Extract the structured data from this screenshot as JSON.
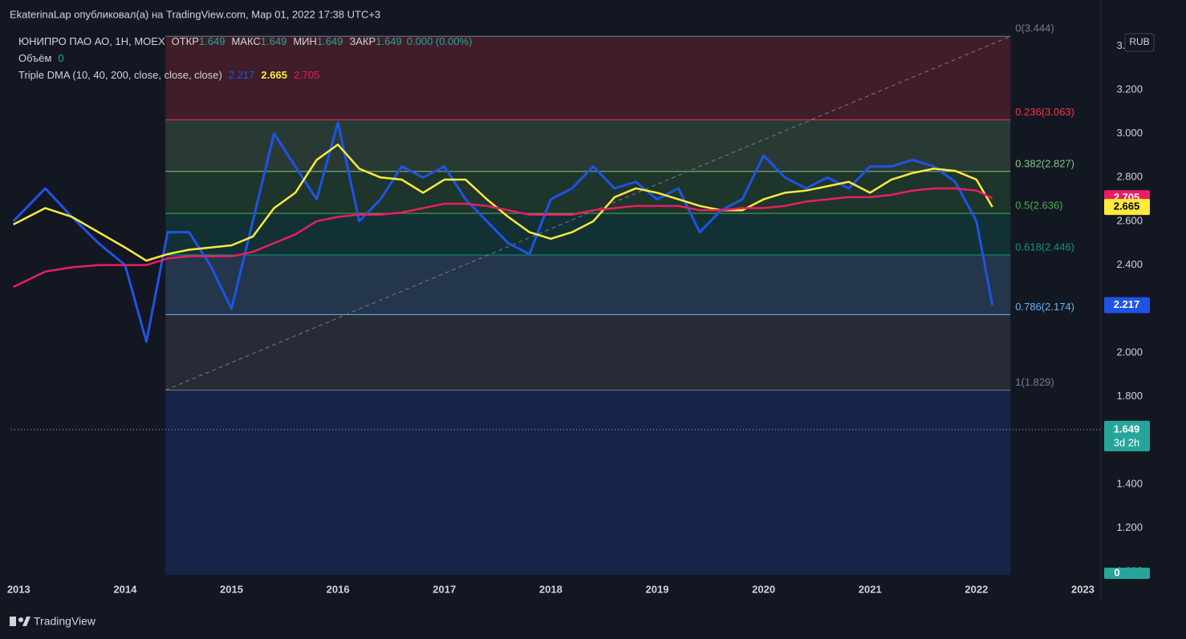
{
  "header": "EkaterinaLap опубликовал(а) на TradingView.com, Мар 01, 2022 17:38 UTC+3",
  "footer": "TradingView",
  "chart_data": {
    "type": "line",
    "symbol": "ЮНИПРО ПАО АО, 1H, MOEX",
    "ohlc": [
      {
        "label": "ОТКР",
        "value": 1.649
      },
      {
        "label": "МАКС",
        "value": 1.649
      },
      {
        "label": "МИН",
        "value": 1.649
      },
      {
        "label": "ЗАКР",
        "value": 1.649
      }
    ],
    "change_label": "0.000 (0.00%)",
    "volume_label": "Объём",
    "volume_value": 0,
    "indicator": "Triple DMA (10, 40, 200, close, close, close)",
    "currency": "RUB",
    "countdown": "3d 2h",
    "last_price": {
      "value": 1.649,
      "label": "1.649"
    },
    "x": [
      2012.95,
      2013.25,
      2013.5,
      2013.75,
      2014.0,
      2014.2,
      2014.4,
      2014.6,
      2014.8,
      2015.0,
      2015.2,
      2015.4,
      2015.6,
      2015.8,
      2016.0,
      2016.2,
      2016.4,
      2016.6,
      2016.8,
      2017.0,
      2017.2,
      2017.4,
      2017.6,
      2017.8,
      2018.0,
      2018.2,
      2018.4,
      2018.6,
      2018.8,
      2019.0,
      2019.2,
      2019.4,
      2019.6,
      2019.8,
      2020.0,
      2020.2,
      2020.4,
      2020.6,
      2020.8,
      2021.0,
      2021.2,
      2021.4,
      2021.6,
      2021.8,
      2022.0,
      2022.15
    ],
    "series": [
      {
        "color": "#1e53e5",
        "width": 3,
        "values": [
          2.6,
          2.75,
          2.62,
          2.5,
          2.4,
          2.05,
          2.55,
          2.55,
          2.4,
          2.2,
          2.6,
          3.0,
          2.85,
          2.7,
          3.05,
          2.6,
          2.7,
          2.85,
          2.8,
          2.85,
          2.7,
          2.6,
          2.5,
          2.45,
          2.7,
          2.75,
          2.85,
          2.75,
          2.78,
          2.7,
          2.75,
          2.55,
          2.65,
          2.7,
          2.9,
          2.8,
          2.75,
          2.8,
          2.75,
          2.85,
          2.85,
          2.88,
          2.85,
          2.78,
          2.6,
          2.217
        ]
      },
      {
        "color": "#ffeb3b",
        "width": 2.5,
        "values": [
          2.585,
          2.66,
          2.62,
          2.55,
          2.48,
          2.42,
          2.45,
          2.47,
          2.48,
          2.49,
          2.53,
          2.66,
          2.73,
          2.88,
          2.95,
          2.84,
          2.8,
          2.79,
          2.73,
          2.79,
          2.79,
          2.7,
          2.62,
          2.55,
          2.52,
          2.55,
          2.6,
          2.71,
          2.75,
          2.73,
          2.7,
          2.67,
          2.65,
          2.65,
          2.7,
          2.73,
          2.74,
          2.76,
          2.78,
          2.73,
          2.79,
          2.82,
          2.84,
          2.83,
          2.79,
          2.665
        ]
      },
      {
        "color": "#e91e63",
        "width": 2.5,
        "values": [
          2.3,
          2.37,
          2.39,
          2.4,
          2.4,
          2.4,
          2.43,
          2.44,
          2.44,
          2.44,
          2.46,
          2.5,
          2.54,
          2.6,
          2.62,
          2.63,
          2.63,
          2.64,
          2.66,
          2.68,
          2.68,
          2.67,
          2.65,
          2.63,
          2.63,
          2.63,
          2.65,
          2.66,
          2.67,
          2.67,
          2.67,
          2.65,
          2.65,
          2.66,
          2.66,
          2.67,
          2.69,
          2.7,
          2.71,
          2.71,
          2.72,
          2.74,
          2.75,
          2.75,
          2.74,
          2.705
        ]
      }
    ],
    "fib": {
      "x": [
        2014.38,
        2022.32
      ],
      "levels": [
        {
          "price": 3.444,
          "label": "0(3.444)",
          "color": "#787b86"
        },
        {
          "price": 3.063,
          "label": "0.236(3.063)",
          "color": "#f23645"
        },
        {
          "price": 2.827,
          "label": "0.382(2.827)",
          "color": "#81c784"
        },
        {
          "price": 2.636,
          "label": "0.5(2.636)",
          "color": "#4caf50"
        },
        {
          "price": 2.446,
          "label": "0.618(2.446)",
          "color": "#089981"
        },
        {
          "price": 2.174,
          "label": "0.786(2.174)",
          "color": "#64b5f6"
        },
        {
          "price": 1.829,
          "label": "1(1.829)",
          "color": "#787b86"
        }
      ]
    },
    "xlim": [
      2012.93,
      2023.17
    ],
    "ylim": [
      0.986,
      3.5
    ],
    "xticks": [
      2013,
      2014,
      2015,
      2016,
      2017,
      2018,
      2019,
      2020,
      2021,
      2022,
      2023
    ],
    "yticks": [
      {
        "value": 1.0,
        "label": "1.000"
      },
      {
        "value": 1.2,
        "label": "1.200"
      },
      {
        "value": 1.4,
        "label": "1.400"
      },
      {
        "value": 1.8,
        "label": "1.800"
      },
      {
        "value": 2.0,
        "label": "2.000"
      },
      {
        "value": 2.4,
        "label": "2.400"
      },
      {
        "value": 2.6,
        "label": "2.600"
      },
      {
        "value": 2.8,
        "label": "2.800"
      },
      {
        "value": 3.0,
        "label": "3.000"
      },
      {
        "value": 3.2,
        "label": "3.200"
      },
      {
        "value": 3.4,
        "label": "3.400"
      }
    ]
  }
}
